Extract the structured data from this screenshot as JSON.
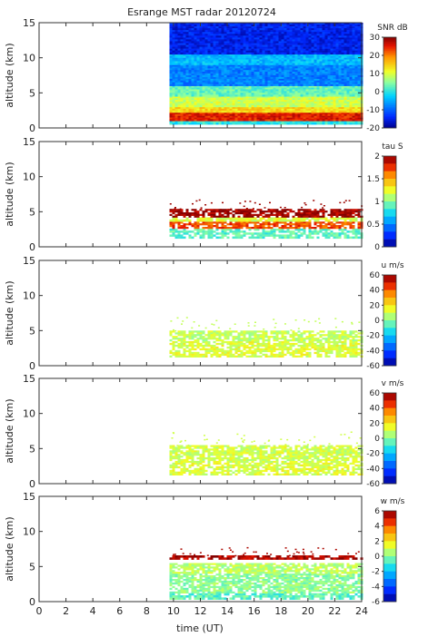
{
  "title": "Esrange MST radar 20120724",
  "chart_data": {
    "type": "heatmap",
    "title": "Esrange MST radar 20120724",
    "xlabel": "time (UT)",
    "x_ticks": [
      0,
      2,
      4,
      6,
      8,
      10,
      12,
      14,
      16,
      18,
      20,
      22,
      24
    ],
    "xlim": [
      0,
      24
    ],
    "data_start_hour": 9.7,
    "panels": [
      {
        "id": "snr",
        "ylabel": "altitude (km)",
        "ylim": [
          0,
          15
        ],
        "y_ticks": [
          0,
          5,
          10,
          15
        ],
        "colorbar_label": "SNR dB",
        "colorbar_range": [
          -20,
          30
        ],
        "colorbar_ticks": [
          30,
          20,
          10,
          0,
          -10,
          -20
        ],
        "colorbar_style": "continuous",
        "coverage_top_km": 15,
        "layers": [
          {
            "alt_km": [
              0.5,
              1.0
            ],
            "value": 0
          },
          {
            "alt_km": [
              1.0,
              2.2
            ],
            "value": 25
          },
          {
            "alt_km": [
              2.2,
              3.0
            ],
            "value": 14
          },
          {
            "alt_km": [
              3.0,
              4.5
            ],
            "value": 9
          },
          {
            "alt_km": [
              4.5,
              6.0
            ],
            "value": 3
          },
          {
            "alt_km": [
              6.0,
              9.0
            ],
            "value": -8
          },
          {
            "alt_km": [
              9.0,
              10.5
            ],
            "value": -4
          },
          {
            "alt_km": [
              10.5,
              15.0
            ],
            "value": -15
          }
        ]
      },
      {
        "id": "tau",
        "ylabel": "altitude (km)",
        "ylim": [
          0,
          15
        ],
        "y_ticks": [
          0,
          5,
          10,
          15
        ],
        "colorbar_label": "tau S",
        "colorbar_range": [
          0,
          2
        ],
        "colorbar_ticks": [
          2,
          1.5,
          1,
          0.5,
          0
        ],
        "colorbar_style": "stepped",
        "coverage_top_km": 6.8,
        "layers": [
          {
            "alt_km": [
              1.2,
              2.6
            ],
            "value": 0.9
          },
          {
            "alt_km": [
              2.6,
              3.6
            ],
            "value": 1.7
          },
          {
            "alt_km": [
              3.6,
              4.2
            ],
            "value": 1.2
          },
          {
            "alt_km": [
              4.2,
              5.4
            ],
            "value": 1.95
          }
        ]
      },
      {
        "id": "u",
        "ylabel": "altitude (km)",
        "ylim": [
          0,
          15
        ],
        "y_ticks": [
          0,
          5,
          10,
          15
        ],
        "colorbar_label": "u m/s",
        "colorbar_range": [
          -60,
          60
        ],
        "colorbar_ticks": [
          60,
          40,
          20,
          0,
          -20,
          -40,
          -60
        ],
        "colorbar_style": "stepped",
        "coverage_top_km": 7,
        "layers": [
          {
            "alt_km": [
              1.2,
              3.5
            ],
            "value": 12
          },
          {
            "alt_km": [
              3.5,
              5.0
            ],
            "value": 8
          }
        ]
      },
      {
        "id": "v",
        "ylabel": "altitude (km)",
        "ylim": [
          0,
          15
        ],
        "y_ticks": [
          0,
          5,
          10,
          15
        ],
        "colorbar_label": "v m/s",
        "colorbar_range": [
          -60,
          60
        ],
        "colorbar_ticks": [
          60,
          40,
          20,
          0,
          -20,
          -40,
          -60
        ],
        "colorbar_style": "stepped",
        "coverage_top_km": 7.5,
        "layers": [
          {
            "alt_km": [
              1.2,
              3.0
            ],
            "value": 12
          },
          {
            "alt_km": [
              3.0,
              5.5
            ],
            "value": 10
          }
        ]
      },
      {
        "id": "w",
        "ylabel": "altitude (km)",
        "ylim": [
          0,
          15
        ],
        "y_ticks": [
          0,
          5,
          10,
          15
        ],
        "colorbar_label": "w m/s",
        "colorbar_range": [
          -6,
          6
        ],
        "colorbar_ticks": [
          6,
          4,
          2,
          0,
          -2,
          -4,
          -6
        ],
        "colorbar_style": "stepped",
        "coverage_top_km": 7.8,
        "layers": [
          {
            "alt_km": [
              0.3,
              1.2
            ],
            "value": -0.6
          },
          {
            "alt_km": [
              1.2,
              4.0
            ],
            "value": 0.1
          },
          {
            "alt_km": [
              4.0,
              5.5
            ],
            "value": 0.7
          },
          {
            "alt_km": [
              6.0,
              6.6
            ],
            "value": 5.5
          }
        ]
      }
    ]
  }
}
